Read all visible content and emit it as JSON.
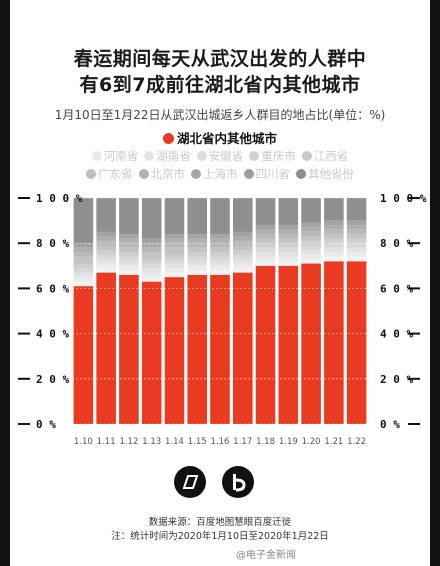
{
  "title_line1": "春运期间每天从武汉出发的人群中",
  "title_line2": "有6到7成前往湖北省内其他城市",
  "subtitle": "1月10日至1月22日从武汉出城返乡人群目的地占比(单位：%)",
  "legend_main": {
    "label": "湖北省内其他城市",
    "color": "#e93a22"
  },
  "legend_row1": [
    {
      "label": "河南省",
      "color": "#e9e9e9"
    },
    {
      "label": "湖南省",
      "color": "#e4e4e4"
    },
    {
      "label": "安徽省",
      "color": "#dcdcdc"
    },
    {
      "label": "重庆市",
      "color": "#d2d2d2"
    },
    {
      "label": "江西省",
      "color": "#c8c8c8"
    }
  ],
  "legend_row2": [
    {
      "label": "广东省",
      "color": "#bdbdbd"
    },
    {
      "label": "北京市",
      "color": "#b2b2b2"
    },
    {
      "label": "上海市",
      "color": "#a8a8a8"
    },
    {
      "label": "四川省",
      "color": "#9d9d9d"
    },
    {
      "label": "其他省份",
      "color": "#8e8e8e"
    }
  ],
  "chart_data": {
    "type": "bar",
    "stacked": true,
    "categories": [
      "1.10",
      "1.11",
      "1.12",
      "1.13",
      "1.14",
      "1.15",
      "1.16",
      "1.17",
      "1.18",
      "1.19",
      "1.20",
      "1.21",
      "1.22"
    ],
    "series": [
      {
        "name": "湖北省内其他城市",
        "color": "#e93a22",
        "values": [
          61,
          67,
          66,
          63,
          65,
          66,
          66,
          67,
          70,
          70,
          71,
          72,
          72
        ]
      },
      {
        "name": "河南省",
        "color": "#f2f2f2",
        "values": [
          2,
          2,
          2,
          2,
          2,
          2,
          2,
          2,
          2,
          2,
          2,
          2,
          2
        ]
      },
      {
        "name": "湖南省",
        "color": "#ebebeb",
        "values": [
          2,
          2,
          2,
          2,
          2,
          2,
          2,
          2,
          2,
          2,
          2,
          2,
          2
        ]
      },
      {
        "name": "安徽省",
        "color": "#e2e2e2",
        "values": [
          2,
          2,
          2,
          2,
          2,
          2,
          2,
          2,
          2,
          2,
          2,
          2,
          2
        ]
      },
      {
        "name": "重庆市",
        "color": "#d8d8d8",
        "values": [
          2,
          2,
          2,
          2,
          2,
          2,
          2,
          2,
          2,
          2,
          2,
          2,
          2
        ]
      },
      {
        "name": "江西省",
        "color": "#cecece",
        "values": [
          2,
          2,
          2,
          2,
          2,
          2,
          2,
          2,
          2,
          2,
          2,
          2,
          2
        ]
      },
      {
        "name": "广东省",
        "color": "#c3c3c3",
        "values": [
          3,
          2,
          2,
          3,
          3,
          2,
          2,
          2,
          2,
          2,
          2,
          2,
          2
        ]
      },
      {
        "name": "北京市",
        "color": "#b8b8b8",
        "values": [
          2,
          2,
          2,
          2,
          2,
          2,
          2,
          2,
          2,
          2,
          2,
          2,
          2
        ]
      },
      {
        "name": "上海市",
        "color": "#aeaeae",
        "values": [
          2,
          2,
          2,
          2,
          2,
          2,
          2,
          2,
          2,
          2,
          2,
          2,
          2
        ]
      },
      {
        "name": "四川省",
        "color": "#a3a3a3",
        "values": [
          2,
          2,
          2,
          2,
          2,
          2,
          2,
          2,
          2,
          2,
          2,
          2,
          2
        ]
      },
      {
        "name": "其他省份",
        "color": "#8f8f8f",
        "values": [
          20,
          15,
          16,
          18,
          16,
          16,
          16,
          15,
          12,
          12,
          11,
          10,
          10
        ]
      }
    ],
    "yticks": [
      "0 %",
      "2 0 %",
      "4 0 %",
      "6 0 %",
      "8 0 %",
      "1 0 0 %"
    ],
    "ylim": [
      0,
      100
    ],
    "grid": true
  },
  "footer_source": "数据来源：百度地图慧眼百度迁徙",
  "footer_note": "注：统计时间为2020年1月10日至2020年1月22日",
  "watermark": "@电子金新闻"
}
